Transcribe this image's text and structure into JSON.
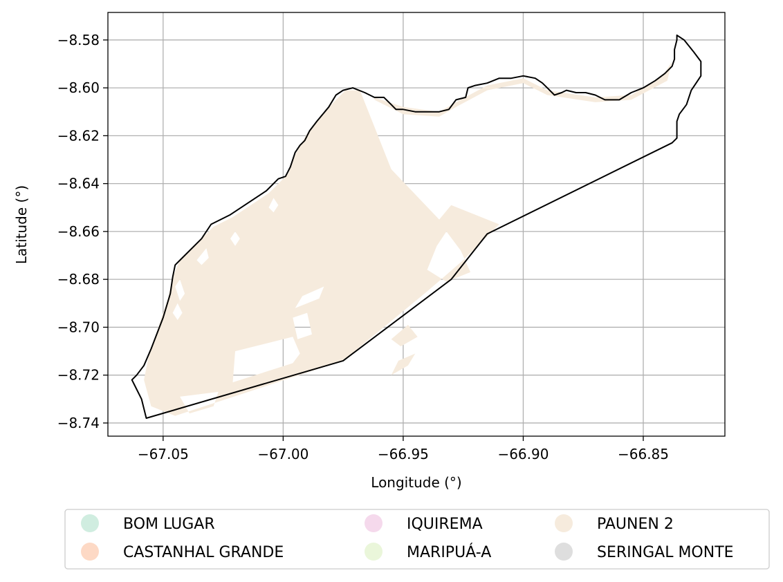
{
  "chart_data": {
    "type": "map",
    "title": "",
    "xlabel": "Longitude (°)",
    "ylabel": "Latitude (°)",
    "xlim": [
      -67.073,
      -66.816
    ],
    "ylim": [
      -8.7455,
      -8.5685
    ],
    "xticks": [
      -67.05,
      -67.0,
      -66.95,
      -66.9,
      -66.85
    ],
    "xtick_labels": [
      "−67.05",
      "−67.00",
      "−66.95",
      "−66.90",
      "−66.85"
    ],
    "yticks": [
      -8.58,
      -8.6,
      -8.62,
      -8.64,
      -8.66,
      -8.68,
      -8.7,
      -8.72,
      -8.74
    ],
    "ytick_labels": [
      "−8.58",
      "−8.60",
      "−8.62",
      "−8.64",
      "−8.66",
      "−8.68",
      "−8.70",
      "−8.72",
      "−8.74"
    ],
    "grid": true,
    "legend_position": "below-center",
    "legend_columns": 3,
    "boundary_color": "#000000",
    "legend": [
      {
        "label": "BOM LUGAR",
        "color": "#d0ede0"
      },
      {
        "label": "CASTANHAL GRANDE",
        "color": "#fdd9c5"
      },
      {
        "label": "IQUIREMA",
        "color": "#f5d9ec"
      },
      {
        "label": "MARIPUÁ-A",
        "color": "#eaf6da"
      },
      {
        "label": "PAUNEN 2",
        "color": "#f6ebdd"
      },
      {
        "label": "SERINGAL MONTE",
        "color": "#dedede"
      }
    ],
    "boundary": [
      [
        -67.057,
        -8.738
      ],
      [
        -67.059,
        -8.73
      ],
      [
        -67.062,
        -8.724
      ],
      [
        -67.063,
        -8.722
      ],
      [
        -67.061,
        -8.72
      ],
      [
        -67.058,
        -8.716
      ],
      [
        -67.055,
        -8.709
      ],
      [
        -67.05,
        -8.696
      ],
      [
        -67.047,
        -8.686
      ],
      [
        -67.046,
        -8.679
      ],
      [
        -67.045,
        -8.674
      ],
      [
        -67.042,
        -8.671
      ],
      [
        -67.034,
        -8.663
      ],
      [
        -67.03,
        -8.657
      ],
      [
        -67.022,
        -8.653
      ],
      [
        -67.007,
        -8.643
      ],
      [
        -67.002,
        -8.638
      ],
      [
        -66.999,
        -8.637
      ],
      [
        -66.997,
        -8.633
      ],
      [
        -66.995,
        -8.627
      ],
      [
        -66.993,
        -8.624
      ],
      [
        -66.991,
        -8.622
      ],
      [
        -66.989,
        -8.618
      ],
      [
        -66.986,
        -8.614
      ],
      [
        -66.981,
        -8.608
      ],
      [
        -66.978,
        -8.603
      ],
      [
        -66.975,
        -8.601
      ],
      [
        -66.971,
        -8.6
      ],
      [
        -66.966,
        -8.602
      ],
      [
        -66.962,
        -8.604
      ],
      [
        -66.958,
        -8.604
      ],
      [
        -66.955,
        -8.607
      ],
      [
        -66.953,
        -8.609
      ],
      [
        -66.95,
        -8.609
      ],
      [
        -66.945,
        -8.61
      ],
      [
        -66.94,
        -8.61
      ],
      [
        -66.935,
        -8.61
      ],
      [
        -66.931,
        -8.609
      ],
      [
        -66.928,
        -8.605
      ],
      [
        -66.924,
        -8.604
      ],
      [
        -66.923,
        -8.6
      ],
      [
        -66.92,
        -8.599
      ],
      [
        -66.915,
        -8.598
      ],
      [
        -66.91,
        -8.596
      ],
      [
        -66.905,
        -8.596
      ],
      [
        -66.9,
        -8.595
      ],
      [
        -66.895,
        -8.596
      ],
      [
        -66.892,
        -8.598
      ],
      [
        -66.89,
        -8.6
      ],
      [
        -66.887,
        -8.603
      ],
      [
        -66.884,
        -8.602
      ],
      [
        -66.882,
        -8.601
      ],
      [
        -66.878,
        -8.602
      ],
      [
        -66.874,
        -8.602
      ],
      [
        -66.87,
        -8.603
      ],
      [
        -66.866,
        -8.605
      ],
      [
        -66.86,
        -8.605
      ],
      [
        -66.855,
        -8.602
      ],
      [
        -66.85,
        -8.6
      ],
      [
        -66.845,
        -8.597
      ],
      [
        -66.841,
        -8.594
      ],
      [
        -66.838,
        -8.591
      ],
      [
        -66.837,
        -8.588
      ],
      [
        -66.837,
        -8.584
      ],
      [
        -66.836,
        -8.58
      ],
      [
        -66.836,
        -8.578
      ],
      [
        -66.833,
        -8.58
      ],
      [
        -66.829,
        -8.585
      ],
      [
        -66.826,
        -8.589
      ],
      [
        -66.826,
        -8.592
      ],
      [
        -66.826,
        -8.595
      ],
      [
        -66.828,
        -8.598
      ],
      [
        -66.83,
        -8.601
      ],
      [
        -66.832,
        -8.607
      ],
      [
        -66.835,
        -8.611
      ],
      [
        -66.836,
        -8.614
      ],
      [
        -66.836,
        -8.617
      ],
      [
        -66.836,
        -8.621
      ],
      [
        -66.838,
        -8.623
      ],
      [
        -66.915,
        -8.661
      ],
      [
        -66.93,
        -8.68
      ],
      [
        -66.975,
        -8.714
      ],
      [
        -67.057,
        -8.738
      ]
    ],
    "land_use_area": {
      "label": "PAUNEN 2",
      "polygon": [
        [
          -67.055,
          -8.733
        ],
        [
          -67.058,
          -8.722
        ],
        [
          -67.056,
          -8.712
        ],
        [
          -67.052,
          -8.7
        ],
        [
          -67.048,
          -8.688
        ],
        [
          -67.046,
          -8.679
        ],
        [
          -67.043,
          -8.672
        ],
        [
          -67.035,
          -8.664
        ],
        [
          -67.029,
          -8.658
        ],
        [
          -67.021,
          -8.654
        ],
        [
          -67.006,
          -8.644
        ],
        [
          -67.001,
          -8.639
        ],
        [
          -66.998,
          -8.636
        ],
        [
          -66.995,
          -8.628
        ],
        [
          -66.99,
          -8.619
        ],
        [
          -66.985,
          -8.613
        ],
        [
          -66.979,
          -8.606
        ],
        [
          -66.974,
          -8.601
        ],
        [
          -66.968,
          -8.601
        ],
        [
          -66.955,
          -8.634
        ],
        [
          -66.935,
          -8.655
        ],
        [
          -66.93,
          -8.649
        ],
        [
          -66.91,
          -8.657
        ],
        [
          -66.925,
          -8.672
        ],
        [
          -66.94,
          -8.685
        ],
        [
          -66.975,
          -8.714
        ],
        [
          -67.045,
          -8.737
        ]
      ],
      "strip": [
        [
          -66.962,
          -8.604
        ],
        [
          -66.95,
          -8.608
        ],
        [
          -66.935,
          -8.61
        ],
        [
          -66.928,
          -8.606
        ],
        [
          -66.915,
          -8.599
        ],
        [
          -66.9,
          -8.596
        ],
        [
          -66.89,
          -8.601
        ],
        [
          -66.87,
          -8.604
        ],
        [
          -66.855,
          -8.603
        ],
        [
          -66.842,
          -8.595
        ],
        [
          -66.838,
          -8.589
        ],
        [
          -66.84,
          -8.597
        ],
        [
          -66.855,
          -8.605
        ],
        [
          -66.87,
          -8.606
        ],
        [
          -66.89,
          -8.603
        ],
        [
          -66.9,
          -8.598
        ],
        [
          -66.915,
          -8.601
        ],
        [
          -66.928,
          -8.608
        ],
        [
          -66.935,
          -8.612
        ],
        [
          -66.95,
          -8.611
        ],
        [
          -66.962,
          -8.605
        ]
      ],
      "gaps": [
        [
          [
            -67.021,
            -8.723
          ],
          [
            -66.996,
            -8.715
          ],
          [
            -66.993,
            -8.711
          ],
          [
            -66.996,
            -8.704
          ],
          [
            -67.02,
            -8.71
          ]
        ],
        [
          [
            -67.039,
            -8.736
          ],
          [
            -67.029,
            -8.733
          ],
          [
            -67.027,
            -8.727
          ],
          [
            -67.043,
            -8.729
          ]
        ],
        [
          [
            -66.995,
            -8.692
          ],
          [
            -66.985,
            -8.688
          ],
          [
            -66.983,
            -8.683
          ],
          [
            -66.992,
            -8.687
          ]
        ],
        [
          [
            -66.994,
            -8.705
          ],
          [
            -66.988,
            -8.703
          ],
          [
            -66.99,
            -8.694
          ],
          [
            -66.996,
            -8.696
          ]
        ],
        [
          [
            -66.955,
            -8.705
          ],
          [
            -66.948,
            -8.699
          ],
          [
            -66.944,
            -8.704
          ],
          [
            -66.951,
            -8.708
          ]
        ],
        [
          [
            -66.955,
            -8.72
          ],
          [
            -66.948,
            -8.716
          ],
          [
            -66.945,
            -8.711
          ],
          [
            -66.952,
            -8.714
          ]
        ],
        [
          [
            -66.94,
            -8.676
          ],
          [
            -66.936,
            -8.666
          ],
          [
            -66.932,
            -8.66
          ],
          [
            -66.926,
            -8.668
          ],
          [
            -66.922,
            -8.677
          ],
          [
            -66.932,
            -8.681
          ]
        ],
        [
          [
            -67.045,
            -8.683
          ],
          [
            -67.043,
            -8.68
          ],
          [
            -67.041,
            -8.686
          ],
          [
            -67.043,
            -8.689
          ]
        ],
        [
          [
            -67.046,
            -8.694
          ],
          [
            -67.044,
            -8.69
          ],
          [
            -67.042,
            -8.694
          ],
          [
            -67.044,
            -8.697
          ]
        ],
        [
          [
            -67.036,
            -8.672
          ],
          [
            -67.032,
            -8.667
          ],
          [
            -67.031,
            -8.671
          ],
          [
            -67.034,
            -8.674
          ]
        ],
        [
          [
            -67.006,
            -8.65
          ],
          [
            -67.004,
            -8.646
          ],
          [
            -67.002,
            -8.649
          ],
          [
            -67.004,
            -8.652
          ]
        ],
        [
          [
            -67.022,
            -8.663
          ],
          [
            -67.02,
            -8.66
          ],
          [
            -67.018,
            -8.663
          ],
          [
            -67.02,
            -8.666
          ]
        ]
      ]
    }
  }
}
